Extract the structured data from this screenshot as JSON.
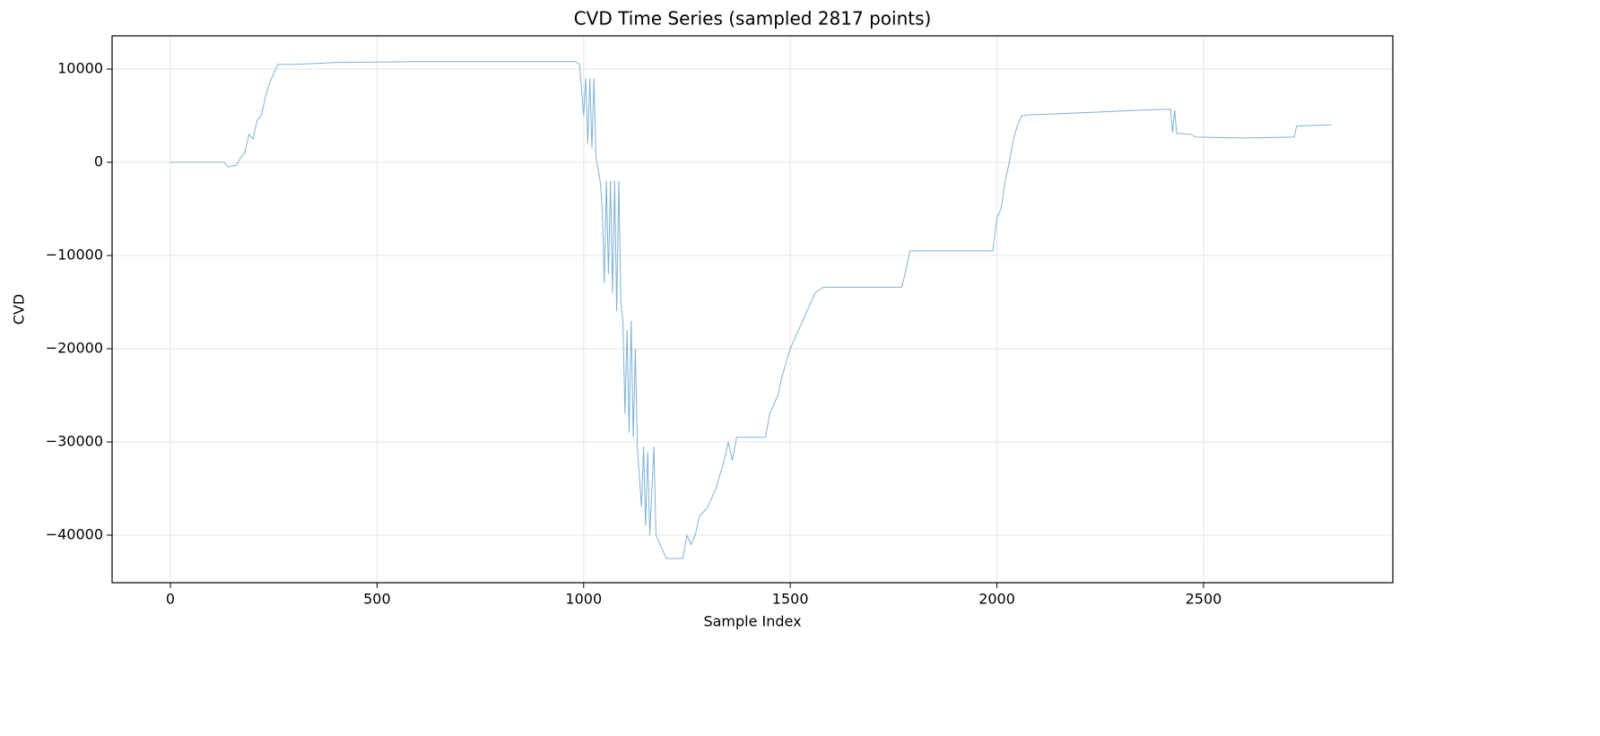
{
  "chart_data": {
    "type": "line",
    "title": "CVD Time Series (sampled 2817 points)",
    "x_label": "Sample Index",
    "y_label": "CVD",
    "x": [
      0,
      130,
      140,
      160,
      170,
      180,
      190,
      200,
      210,
      220,
      230,
      240,
      250,
      260,
      300,
      400,
      600,
      800,
      980,
      990,
      1000,
      1005,
      1010,
      1015,
      1020,
      1025,
      1030,
      1040,
      1045,
      1050,
      1055,
      1060,
      1065,
      1070,
      1075,
      1080,
      1085,
      1090,
      1095,
      1100,
      1105,
      1110,
      1115,
      1120,
      1125,
      1130,
      1140,
      1145,
      1150,
      1155,
      1160,
      1170,
      1175,
      1180,
      1190,
      1200,
      1240,
      1250,
      1260,
      1270,
      1280,
      1300,
      1320,
      1340,
      1350,
      1360,
      1370,
      1440,
      1450,
      1470,
      1480,
      1500,
      1520,
      1540,
      1560,
      1580,
      1700,
      1770,
      1780,
      1790,
      1900,
      1990,
      2000,
      2010,
      2020,
      2030,
      2040,
      2050,
      2060,
      2080,
      2150,
      2200,
      2300,
      2420,
      2425,
      2430,
      2435,
      2470,
      2480,
      2600,
      2720,
      2725,
      2800,
      2810
    ],
    "series": [
      {
        "name": "CVD",
        "color": "#7fb2d8",
        "values": [
          0,
          0,
          -500,
          -300,
          500,
          1000,
          3000,
          2500,
          4500,
          5000,
          7000,
          8500,
          9500,
          10500,
          10500,
          10700,
          10800,
          10800,
          10800,
          10500,
          5000,
          9000,
          2000,
          9000,
          1500,
          9000,
          500,
          -2000,
          -5000,
          -13000,
          -2000,
          -12000,
          -2000,
          -14000,
          -2000,
          -16000,
          -2000,
          -15000,
          -17000,
          -27000,
          -18000,
          -29000,
          -17000,
          -29500,
          -20000,
          -30500,
          -37000,
          -30500,
          -39000,
          -31000,
          -40000,
          -30500,
          -40000,
          -40500,
          -41500,
          -42500,
          -42500,
          -40000,
          -41000,
          -40000,
          -38000,
          -37000,
          -35000,
          -32000,
          -30000,
          -32000,
          -29500,
          -29500,
          -27000,
          -25000,
          -23000,
          -20000,
          -18000,
          -16000,
          -14000,
          -13400,
          -13400,
          -13400,
          -11500,
          -9500,
          -9500,
          -9500,
          -6000,
          -5000,
          -2000,
          0,
          2500,
          4000,
          5000,
          5100,
          5200,
          5300,
          5500,
          5700,
          3200,
          5600,
          3100,
          3000,
          2700,
          2600,
          2700,
          3900,
          4000,
          4000
        ]
      }
    ],
    "xlim": [
      -141,
      2958
    ],
    "ylim": [
      -45100,
      13560
    ],
    "xticks": [
      0,
      500,
      1000,
      1500,
      2000,
      2500
    ],
    "yticks": [
      {
        "value": -40000,
        "label": "−40000"
      },
      {
        "value": -30000,
        "label": "−30000"
      },
      {
        "value": -20000,
        "label": "−20000"
      },
      {
        "value": -10000,
        "label": "−10000"
      },
      0,
      10000
    ],
    "grid": true
  }
}
